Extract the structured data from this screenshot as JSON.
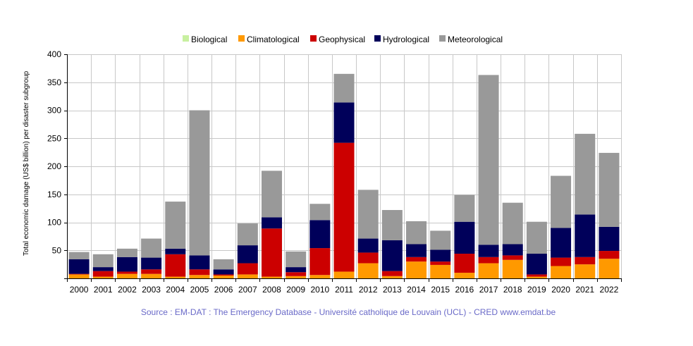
{
  "chart_data": {
    "type": "bar",
    "stacked": true,
    "title": "",
    "xlabel": "",
    "ylabel": "Total economic damage (US$ billion) per disaster subgroup",
    "ylim": [
      0,
      400
    ],
    "yticks": [
      50,
      100,
      150,
      200,
      250,
      300,
      350,
      400
    ],
    "grid": true,
    "legend_position": "top",
    "categories": [
      "2000",
      "2001",
      "2002",
      "2003",
      "2004",
      "2005",
      "2006",
      "2007",
      "2008",
      "2009",
      "2010",
      "2011",
      "2012",
      "2013",
      "2014",
      "2015",
      "2016",
      "2017",
      "2018",
      "2019",
      "2020",
      "2021",
      "2022"
    ],
    "series": [
      {
        "name": "Biological",
        "color": "#c8f0a0",
        "values": [
          0,
          0,
          0,
          0,
          0,
          0,
          0,
          0,
          0,
          0,
          0,
          0,
          0,
          0,
          0,
          0,
          0,
          0,
          0,
          0,
          0,
          0,
          0
        ]
      },
      {
        "name": "Climatological",
        "color": "#ff9900",
        "values": [
          7,
          3,
          8,
          8,
          3,
          6,
          5,
          7,
          3,
          4,
          6,
          12,
          27,
          4,
          30,
          24,
          10,
          27,
          33,
          3,
          22,
          25,
          35
        ]
      },
      {
        "name": "Geophysical",
        "color": "#cc0000",
        "values": [
          1,
          10,
          4,
          8,
          40,
          10,
          2,
          20,
          86,
          7,
          48,
          230,
          19,
          9,
          8,
          6,
          34,
          11,
          8,
          4,
          15,
          13,
          14
        ]
      },
      {
        "name": "Hydrological",
        "color": "#00005a",
        "values": [
          26,
          7,
          26,
          21,
          10,
          25,
          9,
          32,
          20,
          9,
          50,
          72,
          25,
          55,
          23,
          21,
          57,
          22,
          20,
          37,
          53,
          76,
          43
        ]
      },
      {
        "name": "Meteorological",
        "color": "#999999",
        "values": [
          13,
          23,
          15,
          34,
          84,
          259,
          18,
          39,
          83,
          28,
          29,
          51,
          87,
          54,
          41,
          34,
          48,
          303,
          74,
          57,
          93,
          144,
          132
        ]
      }
    ]
  },
  "source_text": "Source : EM-DAT : The Emergency Database - Université catholique de Louvain (UCL) - CRED  www.emdat.be"
}
